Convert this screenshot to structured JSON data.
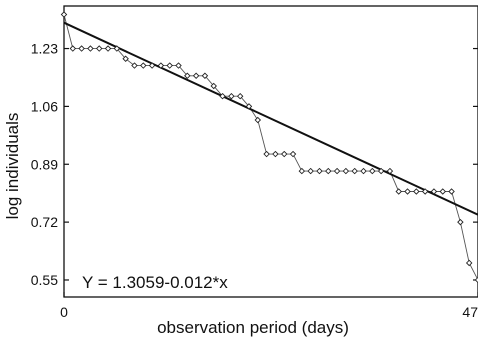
{
  "chart_data": {
    "type": "scatter",
    "xlabel": "observation period (days)",
    "ylabel": "log individuals",
    "x_ticks": [
      "0",
      "47"
    ],
    "y_ticks": [
      "1.23",
      "1.06",
      "0.89",
      "0.72",
      "0.55"
    ],
    "xlim": [
      0,
      47
    ],
    "ylim": [
      0.5,
      1.355
    ],
    "grid": false,
    "annotation": "Y = 1.3059-0.012*x",
    "series": [
      {
        "style": "step-line-with-open-diamond-markers",
        "x": [
          0,
          1,
          2,
          3,
          4,
          5,
          6,
          7,
          8,
          9,
          10,
          11,
          12,
          13,
          14,
          15,
          16,
          17,
          18,
          19,
          20,
          21,
          22,
          23,
          24,
          25,
          26,
          27,
          28,
          29,
          30,
          31,
          32,
          33,
          34,
          35,
          36,
          37,
          38,
          39,
          40,
          41,
          42,
          43,
          44,
          45,
          46,
          47
        ],
        "y": [
          1.33,
          1.23,
          1.23,
          1.23,
          1.23,
          1.23,
          1.23,
          1.2,
          1.18,
          1.18,
          1.18,
          1.18,
          1.18,
          1.18,
          1.15,
          1.15,
          1.15,
          1.12,
          1.09,
          1.09,
          1.09,
          1.06,
          1.02,
          0.92,
          0.92,
          0.92,
          0.92,
          0.87,
          0.87,
          0.87,
          0.87,
          0.87,
          0.87,
          0.87,
          0.87,
          0.87,
          0.87,
          0.87,
          0.81,
          0.81,
          0.81,
          0.81,
          0.81,
          0.81,
          0.81,
          0.72,
          0.6,
          0.55
        ]
      },
      {
        "style": "regression-line",
        "intercept": 1.3059,
        "slope": -0.012
      }
    ]
  }
}
